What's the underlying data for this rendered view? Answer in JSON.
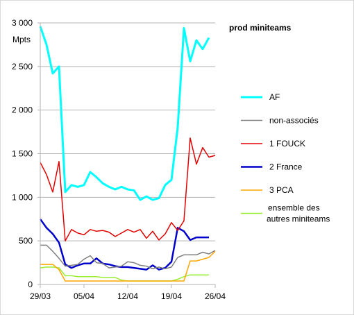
{
  "chart_data": {
    "type": "line",
    "title": "prod miniteams",
    "ylabel": "Mpts",
    "xlabel": "",
    "ylim": [
      0,
      3000
    ],
    "yticks": [
      0,
      500,
      1000,
      1500,
      2000,
      2500,
      3000
    ],
    "ytick_labels": [
      "0",
      "500",
      "1 000",
      "1 500",
      "2 000",
      "2 500",
      "3 000"
    ],
    "xlim": [
      0,
      28
    ],
    "xticks": [
      0,
      7,
      14,
      21,
      28
    ],
    "xtick_labels": [
      "29/03",
      "05/04",
      "12/04",
      "19/04",
      "26/04"
    ],
    "grid": "horizontal",
    "legend_position": "right",
    "series": [
      {
        "name": "AF",
        "color": "#00ffff",
        "width": 3,
        "values": [
          2960,
          2750,
          2420,
          2500,
          1060,
          1140,
          1120,
          1140,
          1290,
          1230,
          1160,
          1120,
          1090,
          1120,
          1090,
          1080,
          970,
          1010,
          970,
          990,
          1140,
          1200,
          1800,
          2940,
          2560,
          2800,
          2700,
          2830
        ]
      },
      {
        "name": "non-associés",
        "color": "#808080",
        "width": 1.5,
        "values": [
          450,
          450,
          380,
          300,
          210,
          220,
          230,
          290,
          330,
          250,
          240,
          190,
          200,
          210,
          260,
          250,
          220,
          210,
          180,
          200,
          180,
          200,
          310,
          340,
          340,
          340,
          370,
          350,
          390
        ]
      },
      {
        "name": "1 FOUCK",
        "color": "#e00000",
        "width": 1.5,
        "values": [
          1400,
          1260,
          1060,
          1410,
          500,
          630,
          590,
          570,
          630,
          610,
          620,
          600,
          550,
          590,
          630,
          600,
          630,
          530,
          610,
          510,
          580,
          710,
          620,
          730,
          1680,
          1380,
          1570,
          1460,
          1480
        ]
      },
      {
        "name": "2 France",
        "color": "#0000cc",
        "width": 2.5,
        "values": [
          750,
          650,
          580,
          480,
          230,
          190,
          220,
          240,
          240,
          300,
          240,
          230,
          210,
          200,
          200,
          190,
          180,
          170,
          220,
          170,
          190,
          260,
          650,
          610,
          510,
          540,
          540,
          540
        ]
      },
      {
        "name": "3 PCA",
        "color": "#ffa500",
        "width": 1.5,
        "values": [
          230,
          230,
          230,
          170,
          40,
          40,
          40,
          40,
          40,
          40,
          40,
          40,
          40,
          40,
          40,
          40,
          40,
          40,
          40,
          40,
          40,
          40,
          40,
          40,
          270,
          270,
          290,
          310,
          380
        ]
      },
      {
        "name": "ensemble des autres miniteams",
        "label_lines": [
          "ensemble des",
          "autres miniteams"
        ],
        "color": "#99ee33",
        "width": 1.5,
        "values": [
          190,
          200,
          200,
          190,
          100,
          100,
          90,
          90,
          90,
          90,
          80,
          80,
          80,
          50,
          40,
          40,
          40,
          40,
          40,
          40,
          40,
          40,
          60,
          90,
          110,
          110,
          110,
          110
        ]
      }
    ]
  }
}
